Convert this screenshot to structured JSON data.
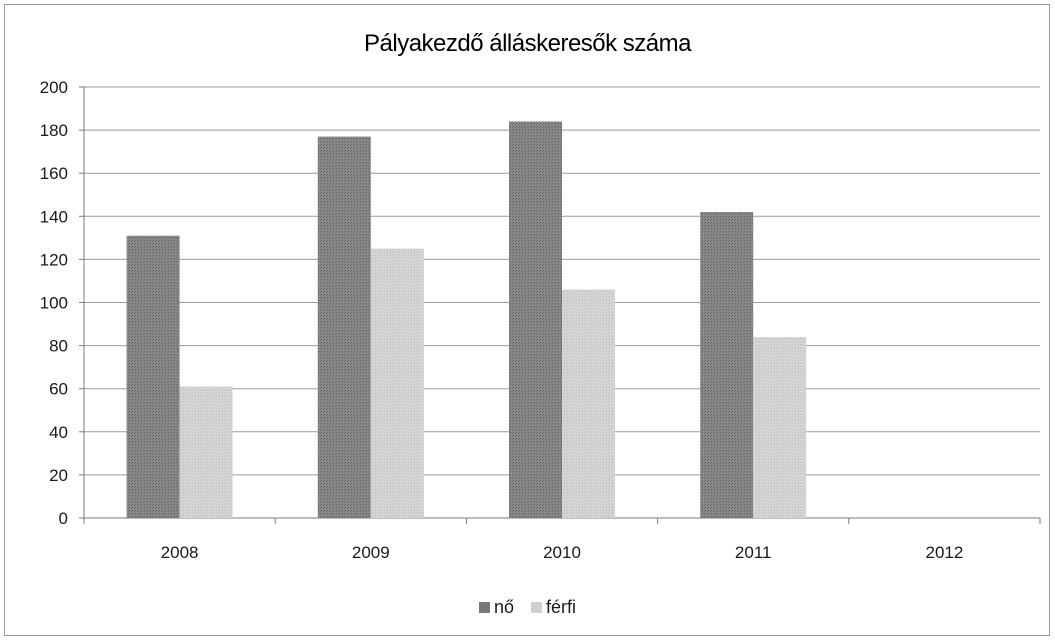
{
  "chart_data": {
    "type": "bar",
    "title": "Pályakezdő álláskeresők száma",
    "categories": [
      "2008",
      "2009",
      "2010",
      "2011",
      "2012"
    ],
    "series": [
      {
        "name": "nő",
        "values": [
          131,
          177,
          184,
          142,
          null
        ],
        "color": "#7a7a7a"
      },
      {
        "name": "férfi",
        "values": [
          61,
          125,
          106,
          84,
          null
        ],
        "color": "#cfcfcf"
      }
    ],
    "ylim": [
      0,
      200
    ],
    "yticks": [
      0,
      20,
      40,
      60,
      80,
      100,
      120,
      140,
      160,
      180,
      200
    ],
    "grid": true,
    "legend_position": "bottom"
  }
}
